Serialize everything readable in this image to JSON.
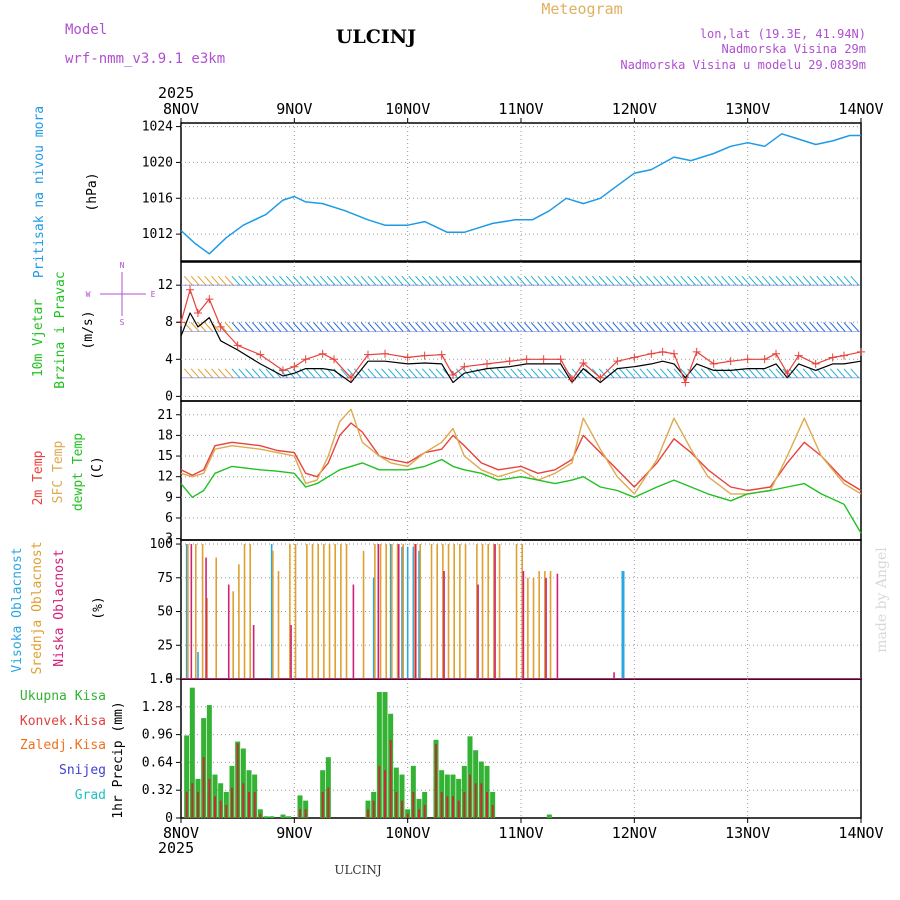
{
  "header": {
    "model_label": "Model",
    "model_name": "wrf-nmm_v3.9.1 e3km",
    "station": "ULCINJ",
    "meteogram": "Meteogram",
    "lonlat": "lon,lat (19.3E, 41.94N)",
    "altitude": "Nadmorska Visina 29m",
    "model_altitude": "Nadmorska Visina u modelu 29.0839m",
    "year_top": "2025",
    "year_bottom": "2025",
    "footer_station": "ULCINJ",
    "watermark": "made by Angel"
  },
  "x_axis": {
    "date_labels": [
      "8NOV",
      "9NOV",
      "10NOV",
      "11NOV",
      "12NOV",
      "13NOV",
      "14NOV"
    ],
    "range_days": [
      0,
      6
    ]
  },
  "panel_labels": {
    "pressure_title": "Pritisak na nivou mora",
    "pressure_unit": "(hPa)",
    "wind_title_1": "10m Vjetar",
    "wind_title_2": "Brzina i Pravac",
    "wind_unit": "(m/s)",
    "wind_rose_n": "N",
    "wind_rose_w": "W",
    "wind_rose_e": "E",
    "wind_rose_s": "S",
    "temp_1": "2m Temp",
    "temp_2": "SFC Temp",
    "temp_3": "dewpt Temp",
    "temp_unit": "(C)",
    "cloud_1": "Visoka Oblacnost",
    "cloud_2": "Srednja Oblacnost",
    "cloud_3": "Niska Oblacnost",
    "cloud_unit": "(%)",
    "precip_1": "Ukupna Kisa",
    "precip_2": "Konvek.Kisa",
    "precip_3": "Zaledj.Kisa",
    "precip_4": "Snijeg",
    "precip_5": "Grad",
    "precip_unit": "1hr Precip (mm)"
  },
  "colors": {
    "pressure": "#1e9be6",
    "wind_speed": "#000000",
    "wind_gust": "#e8423c",
    "temp_2m": "#e8423c",
    "temp_sfc": "#dfa94f",
    "temp_dew": "#22c022",
    "cloud_high": "#2aa7e0",
    "cloud_mid": "#dfa030",
    "cloud_low": "#d0207a",
    "precip_total": "#33b233",
    "precip_conv": "#c03030",
    "precip_freeze": "#f07020",
    "precip_snow": "#4040d0",
    "precip_grad": "#20c0c0",
    "title_purple": "#b050d0",
    "meteogram_orange": "#e0b060"
  },
  "chart_data": [
    {
      "type": "line",
      "panel": "pressure",
      "ylabel": "(hPa)",
      "ylim": [
        1009,
        1024.4
      ],
      "yticks": [
        1012,
        1016,
        1020,
        1024
      ],
      "x": [
        0,
        0.12,
        0.25,
        0.4,
        0.55,
        0.75,
        0.9,
        1.0,
        1.1,
        1.25,
        1.45,
        1.65,
        1.8,
        2.0,
        2.15,
        2.35,
        2.5,
        2.6,
        2.75,
        2.95,
        3.1,
        3.25,
        3.4,
        3.55,
        3.7,
        3.85,
        4.0,
        4.15,
        4.35,
        4.5,
        4.7,
        4.85,
        5.0,
        5.15,
        5.3,
        5.45,
        5.6,
        5.75,
        5.9,
        6.0
      ],
      "series": [
        {
          "name": "Pritisak",
          "values": [
            1012.4,
            1011.0,
            1009.8,
            1011.6,
            1013.0,
            1014.2,
            1015.8,
            1016.2,
            1015.6,
            1015.4,
            1014.6,
            1013.6,
            1013.0,
            1013.0,
            1013.4,
            1012.2,
            1012.2,
            1012.6,
            1013.2,
            1013.6,
            1013.6,
            1014.6,
            1016.0,
            1015.4,
            1016.0,
            1017.4,
            1018.8,
            1019.2,
            1020.6,
            1020.2,
            1021.0,
            1021.8,
            1022.2,
            1021.8,
            1023.2,
            1022.6,
            1022.0,
            1022.4,
            1023.0,
            1023.0
          ]
        }
      ]
    },
    {
      "type": "line",
      "panel": "wind",
      "ylabel": "(m/s)",
      "ylim": [
        -0.5,
        14.5
      ],
      "yticks": [
        0,
        4,
        8,
        12
      ],
      "x": [
        0,
        0.08,
        0.15,
        0.25,
        0.35,
        0.5,
        0.7,
        0.9,
        1.0,
        1.1,
        1.25,
        1.35,
        1.5,
        1.65,
        1.8,
        2.0,
        2.15,
        2.3,
        2.4,
        2.5,
        2.7,
        2.9,
        3.05,
        3.2,
        3.35,
        3.45,
        3.55,
        3.7,
        3.85,
        4.0,
        4.15,
        4.25,
        4.35,
        4.45,
        4.55,
        4.7,
        4.85,
        5.0,
        5.15,
        5.25,
        5.35,
        5.45,
        5.6,
        5.75,
        5.85,
        6.0
      ],
      "series": [
        {
          "name": "Brzina",
          "values": [
            6.5,
            9.0,
            7.5,
            8.5,
            6.0,
            5.0,
            3.5,
            2.2,
            2.5,
            3.0,
            3.0,
            2.8,
            1.5,
            3.8,
            3.8,
            3.5,
            3.6,
            3.5,
            1.5,
            2.5,
            3.0,
            3.2,
            3.5,
            3.5,
            3.5,
            1.5,
            3.0,
            1.5,
            3.0,
            3.2,
            3.5,
            3.8,
            3.5,
            2.0,
            3.5,
            2.8,
            2.8,
            3.0,
            3.0,
            3.5,
            2.0,
            3.5,
            2.8,
            3.5,
            3.5,
            3.8
          ]
        },
        {
          "name": "Udari",
          "values": [
            8.0,
            11.5,
            9.0,
            10.5,
            7.5,
            5.5,
            4.5,
            2.8,
            3.2,
            4.0,
            4.6,
            4.0,
            2.0,
            4.5,
            4.6,
            4.2,
            4.4,
            4.5,
            2.3,
            3.2,
            3.5,
            3.8,
            4.0,
            4.0,
            4.0,
            1.8,
            3.6,
            2.0,
            3.8,
            4.2,
            4.6,
            4.8,
            4.6,
            1.5,
            4.8,
            3.5,
            3.8,
            4.0,
            4.0,
            4.6,
            2.5,
            4.4,
            3.5,
            4.2,
            4.4,
            4.8
          ]
        }
      ],
      "wind_rows_ms": [
        12,
        7,
        2
      ]
    },
    {
      "type": "line",
      "panel": "temperature",
      "ylabel": "(C)",
      "ylim": [
        2.8,
        23
      ],
      "yticks": [
        3,
        6,
        9,
        12,
        15,
        18,
        21
      ],
      "x": [
        0,
        0.1,
        0.2,
        0.3,
        0.45,
        0.7,
        0.85,
        1.0,
        1.1,
        1.2,
        1.3,
        1.4,
        1.5,
        1.6,
        1.75,
        1.85,
        2.0,
        2.15,
        2.3,
        2.4,
        2.5,
        2.65,
        2.8,
        3.0,
        3.15,
        3.3,
        3.45,
        3.55,
        3.7,
        3.85,
        4.0,
        4.2,
        4.35,
        4.5,
        4.65,
        4.85,
        5.0,
        5.2,
        5.35,
        5.5,
        5.65,
        5.85,
        6.0
      ],
      "series": [
        {
          "name": "2m Temp",
          "values": [
            13.0,
            12.2,
            13.0,
            16.5,
            17.0,
            16.5,
            15.8,
            15.5,
            12.5,
            12.0,
            14.0,
            18.0,
            19.8,
            18.5,
            15.0,
            14.5,
            14.0,
            15.5,
            16.0,
            18.0,
            16.5,
            14.0,
            13.0,
            13.5,
            12.5,
            13.0,
            14.5,
            18.0,
            15.5,
            13.0,
            10.5,
            14.0,
            17.5,
            15.5,
            13.0,
            10.5,
            10.0,
            10.5,
            14.0,
            17.0,
            15.0,
            11.5,
            10.0
          ]
        },
        {
          "name": "SFC Temp",
          "values": [
            12.5,
            12.0,
            12.5,
            16.0,
            16.5,
            16.0,
            15.5,
            15.0,
            11.0,
            11.5,
            15.0,
            20.0,
            21.8,
            17.0,
            15.0,
            14.0,
            13.5,
            15.5,
            17.0,
            19.0,
            15.0,
            13.0,
            12.0,
            13.0,
            11.5,
            12.5,
            14.0,
            20.5,
            16.0,
            12.0,
            9.5,
            14.5,
            20.5,
            16.0,
            12.0,
            9.5,
            9.5,
            10.0,
            15.0,
            20.5,
            15.0,
            11.0,
            9.5
          ]
        },
        {
          "name": "dewpt Temp",
          "values": [
            11.0,
            9.0,
            10.0,
            12.5,
            13.5,
            13.0,
            12.8,
            12.5,
            10.5,
            11.0,
            12.0,
            13.0,
            13.5,
            14.0,
            13.0,
            13.0,
            13.0,
            13.5,
            14.5,
            13.5,
            13.0,
            12.5,
            11.5,
            12.0,
            11.5,
            11.0,
            11.5,
            12.0,
            10.5,
            10.0,
            9.0,
            10.5,
            11.5,
            10.5,
            9.5,
            8.5,
            9.5,
            10.0,
            10.5,
            11.0,
            9.5,
            8.0,
            3.8
          ]
        }
      ]
    },
    {
      "type": "bar",
      "panel": "clouds",
      "ylabel": "(%)",
      "ylim": [
        0,
        103
      ],
      "yticks": [
        0,
        25,
        50,
        75,
        100
      ],
      "series": [
        {
          "name": "Visoka Oblacnost",
          "x": [
            0.05,
            0.15,
            0.8,
            1.7,
            1.85,
            1.95,
            2.0,
            2.05,
            2.1,
            3.9
          ],
          "values": [
            100,
            20,
            100,
            75,
            100,
            98,
            98,
            98,
            95,
            80
          ]
        },
        {
          "name": "Srednja Oblacnost",
          "x": [
            0.05,
            0.12,
            0.18,
            0.22,
            0.3,
            0.45,
            0.5,
            0.55,
            0.6,
            0.8,
            0.85,
            0.95,
            1.0,
            1.1,
            1.15,
            1.2,
            1.25,
            1.3,
            1.35,
            1.4,
            1.45,
            1.6,
            1.7,
            1.75,
            1.8,
            1.85,
            1.9,
            1.95,
            2.05,
            2.1,
            2.2,
            2.25,
            2.3,
            2.35,
            2.4,
            2.45,
            2.5,
            2.6,
            2.65,
            2.7,
            2.75,
            2.8,
            2.95,
            3.0,
            3.05,
            3.1,
            3.15,
            3.2,
            3.25
          ],
          "values": [
            100,
            100,
            100,
            60,
            90,
            65,
            85,
            100,
            100,
            95,
            80,
            100,
            100,
            100,
            100,
            100,
            100,
            100,
            100,
            100,
            100,
            95,
            100,
            100,
            100,
            100,
            100,
            100,
            100,
            100,
            100,
            100,
            100,
            100,
            100,
            100,
            100,
            100,
            100,
            100,
            100,
            100,
            100,
            100,
            75,
            75,
            80,
            80,
            80
          ]
        },
        {
          "name": "Niska Oblacnost",
          "x": [
            0.07,
            0.2,
            0.4,
            0.62,
            0.95,
            1.5,
            1.72,
            1.9,
            2.05,
            2.3,
            2.6,
            2.75,
            3.0,
            3.2,
            3.3,
            3.8
          ],
          "values": [
            100,
            90,
            70,
            40,
            40,
            70,
            100,
            100,
            100,
            80,
            70,
            100,
            80,
            75,
            78,
            5
          ]
        }
      ]
    },
    {
      "type": "bar",
      "panel": "precipitation",
      "ylabel": "1hr Precip (mm)",
      "ylim": [
        0,
        1.6
      ],
      "yticks": [
        0,
        0.32,
        0.64,
        0.96,
        1.28,
        1.6
      ],
      "x": [
        0.05,
        0.1,
        0.15,
        0.2,
        0.25,
        0.3,
        0.35,
        0.4,
        0.45,
        0.5,
        0.55,
        0.6,
        0.65,
        0.7,
        0.75,
        0.8,
        0.9,
        0.95,
        1.05,
        1.1,
        1.25,
        1.3,
        1.65,
        1.7,
        1.75,
        1.8,
        1.85,
        1.9,
        1.95,
        2.0,
        2.05,
        2.1,
        2.15,
        2.25,
        2.3,
        2.35,
        2.4,
        2.45,
        2.5,
        2.55,
        2.6,
        2.65,
        2.7,
        2.75,
        3.25
      ],
      "series": [
        {
          "name": "Ukupna Kisa",
          "values": [
            0.95,
            1.5,
            0.45,
            1.15,
            1.3,
            0.5,
            0.4,
            0.3,
            0.6,
            0.88,
            0.8,
            0.55,
            0.5,
            0.1,
            0.02,
            0.02,
            0.04,
            0.02,
            0.26,
            0.2,
            0.55,
            0.7,
            0.2,
            0.3,
            1.45,
            1.45,
            1.2,
            0.58,
            0.5,
            0.1,
            0.6,
            0.22,
            0.3,
            0.9,
            0.55,
            0.5,
            0.5,
            0.45,
            0.6,
            0.94,
            0.78,
            0.65,
            0.6,
            0.3,
            0.04
          ]
        },
        {
          "name": "Konvek.Kisa",
          "values": [
            0.3,
            0.4,
            0.3,
            0.7,
            0.45,
            0.25,
            0.2,
            0.15,
            0.35,
            0.86,
            0.4,
            0.3,
            0.3,
            0.05,
            0,
            0,
            0,
            0,
            0.1,
            0.1,
            0.3,
            0.35,
            0.1,
            0.2,
            0.6,
            0.55,
            0.9,
            0.3,
            0.2,
            0.05,
            0.3,
            0.1,
            0.15,
            0.85,
            0.3,
            0.25,
            0.25,
            0.2,
            0.3,
            0.5,
            0.4,
            0.4,
            0.3,
            0.15,
            0
          ]
        }
      ]
    }
  ]
}
